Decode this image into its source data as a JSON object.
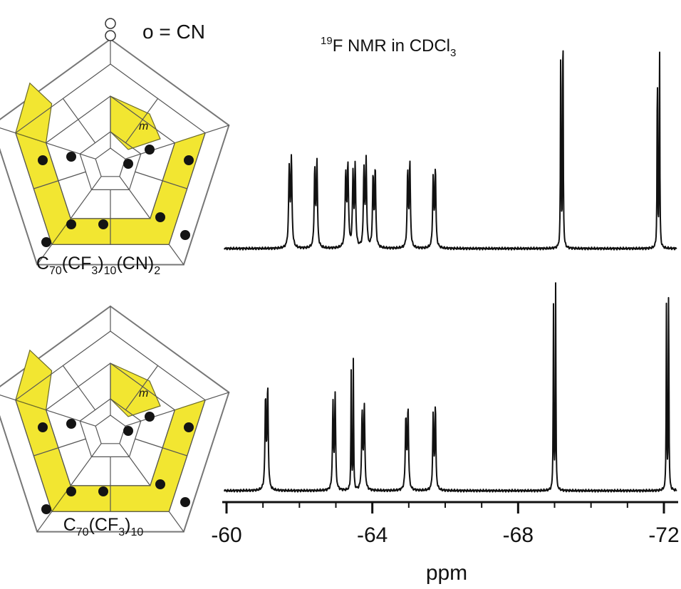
{
  "legend_key": "o = CN",
  "title": {
    "sup": "19",
    "main": "F NMR in CDCl",
    "sub": "3"
  },
  "compounds": [
    {
      "parts": [
        {
          "t": "C",
          "s": false
        },
        {
          "t": "70",
          "s": true
        },
        {
          "t": "(CF",
          "s": false
        },
        {
          "t": "3",
          "s": true
        },
        {
          "t": ")",
          "s": false
        },
        {
          "t": "10",
          "s": true
        },
        {
          "t": "(CN)",
          "s": false
        },
        {
          "t": "2",
          "s": true
        }
      ]
    },
    {
      "parts": [
        {
          "t": "C",
          "s": false
        },
        {
          "t": "70",
          "s": true
        },
        {
          "t": "(CF",
          "s": false
        },
        {
          "t": "3",
          "s": true
        },
        {
          "t": ")",
          "s": false
        },
        {
          "t": "10",
          "s": true
        }
      ]
    }
  ],
  "diagram_label": "m",
  "colors": {
    "highlight": "#f2e631",
    "line": "#111111",
    "dot": "#141414"
  },
  "chart_data": {
    "type": "line",
    "xlabel": "ppm",
    "xlim": [
      -60,
      -72
    ],
    "xticks": [
      -60,
      -64,
      -68,
      -72
    ],
    "x_minor_step": 1,
    "series": [
      {
        "peaks": [
          {
            "x": -61.75,
            "h": 0.3,
            "d": 0.11
          },
          {
            "x": -62.45,
            "h": 0.3,
            "d": 0.1
          },
          {
            "x": -63.3,
            "h": 0.28,
            "d": 0.11
          },
          {
            "x": -63.5,
            "h": 0.28,
            "d": 0.1
          },
          {
            "x": -63.8,
            "h": 0.3,
            "d": 0.1
          },
          {
            "x": -64.05,
            "h": 0.27,
            "d": 0.1
          },
          {
            "x": -65.0,
            "h": 0.29,
            "d": 0.1
          },
          {
            "x": -65.7,
            "h": 0.27,
            "d": 0.1
          },
          {
            "x": -69.2,
            "h": 0.86,
            "d": 0.05
          },
          {
            "x": -71.85,
            "h": 0.74,
            "d": 0.05
          }
        ]
      },
      {
        "peaks": [
          {
            "x": -61.1,
            "h": 0.35,
            "d": 0.1
          },
          {
            "x": -62.95,
            "h": 0.33,
            "d": 0.09
          },
          {
            "x": -63.45,
            "h": 0.46,
            "d": 0.05
          },
          {
            "x": -63.75,
            "h": 0.29,
            "d": 0.1
          },
          {
            "x": -64.95,
            "h": 0.28,
            "d": 0.1
          },
          {
            "x": -65.7,
            "h": 0.29,
            "d": 0.09
          },
          {
            "x": -69.0,
            "h": 0.72,
            "d": 0.05
          },
          {
            "x": -72.1,
            "h": 0.74,
            "d": 0.05
          }
        ]
      }
    ]
  }
}
